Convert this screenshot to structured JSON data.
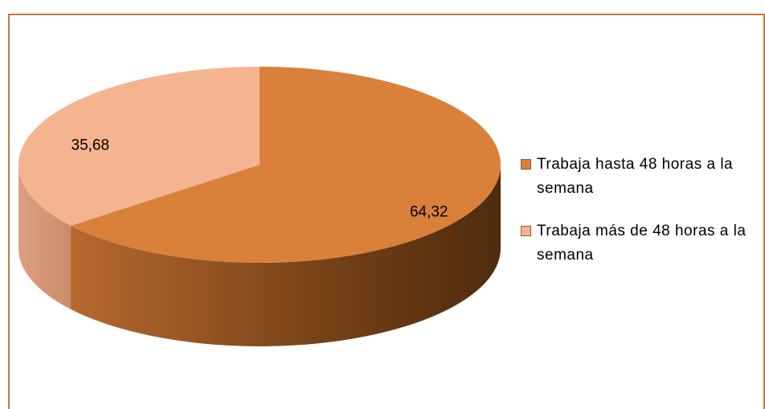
{
  "chart_data": {
    "type": "pie",
    "three_d": true,
    "categories": [
      "Trabaja hasta 48 horas a la semana",
      "Trabaja más de 48 horas a la semana"
    ],
    "values": [
      64.32,
      35.68
    ],
    "value_labels": [
      "64,32",
      "35,68"
    ],
    "colors": [
      "#d9803a",
      "#f4b48f"
    ],
    "legend": "right"
  }
}
